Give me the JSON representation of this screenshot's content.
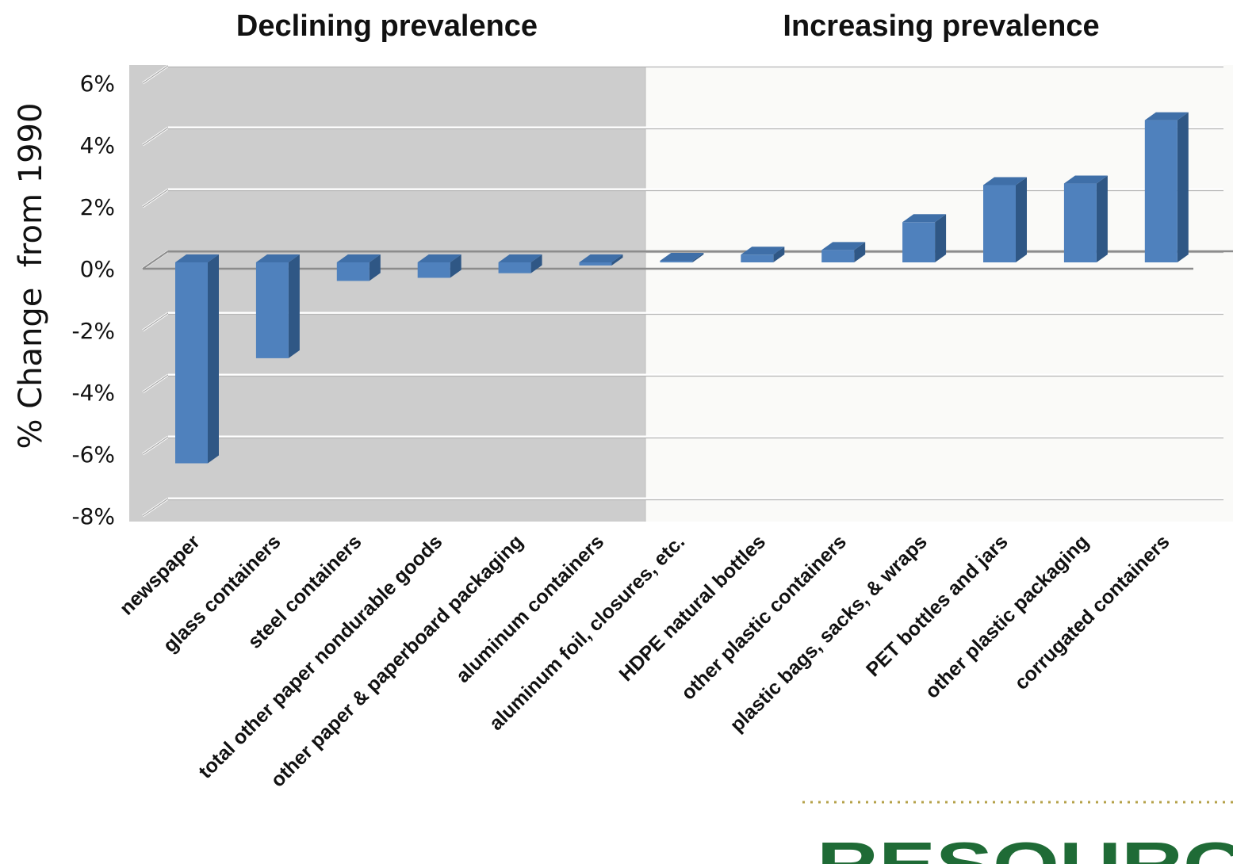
{
  "chart_data": {
    "type": "bar",
    "headers": {
      "left": "Declining prevalence",
      "right": "Increasing prevalence"
    },
    "title": "",
    "xlabel": "",
    "ylabel": "% Change  from 1990",
    "ylim": [
      -8,
      6
    ],
    "yticks": [
      6,
      4,
      2,
      0,
      -2,
      -4,
      -6,
      -8
    ],
    "ytick_labels": [
      "6%",
      "4%",
      "2%",
      "0%",
      "-2%",
      "-4%",
      "-6%",
      "-8%"
    ],
    "categories": [
      "newspaper",
      "glass containers",
      "steel containers",
      "total other paper nondurable goods",
      "other paper & paperboard packaging",
      "aluminum containers",
      "aluminum foil, closures, etc.",
      "HDPE natural bottles",
      "other plastic containers",
      "plastic bags, sacks, & wraps",
      "PET bottles and jars",
      "other plastic packaging",
      "corrugated containers"
    ],
    "values": [
      -6.5,
      -3.1,
      -0.6,
      -0.5,
      -0.35,
      -0.1,
      0.05,
      0.25,
      0.4,
      1.3,
      2.5,
      2.55,
      4.6
    ],
    "grid": true,
    "bar_color": "#4f81bd",
    "regions": [
      {
        "label": "Declining prevalence",
        "color": "#cdcdcd"
      },
      {
        "label": "Increasing prevalence",
        "color": "#fafaf8"
      }
    ]
  },
  "logo": {
    "text": "RESOURC",
    "color": "#1f6b36"
  }
}
